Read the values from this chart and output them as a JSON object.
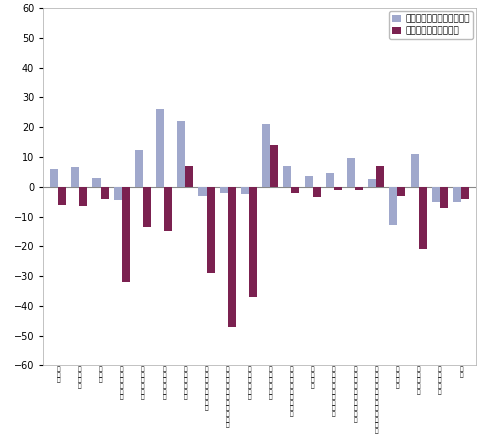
{
  "categories": [
    "鉱\n工\n業",
    "製\n造\n工\n業",
    "鉄\n鉰\n業",
    "非\n鉄\n金\n属\n工\n業",
    "金\n属\n製\n品\n工\n業",
    "一\n般\n機\n械\n工\n業",
    "電\n気\n機\n械\n工\n業",
    "情\n報\n通\n信\n機\n械\n工\n業",
    "電\n子\n部\n品\n・\nデ\nバ\nイ\nス\n工\n業",
    "輸\n送\n機\n械\n工\n業",
    "精\n密\n機\n械\n工\n業",
    "窯\n業\n・\n土\n石\n製\n品\n工\n業",
    "化\n学\n工\n業",
    "石\n油\n・\n石\n炭\n製\n品\n工\n業",
    "プ\nラ\nス\nチ\nッ\nク\n製\n品\n工\n業",
    "パ\nル\nプ\n・\n紙\n・\n紙\n加\n工\n品\n工\n業",
    "繊\n維\n工\n業",
    "食\n料\n品\n工\n業",
    "そ\nの\n他\n工\n業",
    "鉱\n業"
  ],
  "mom": [
    6.0,
    6.5,
    3.0,
    -4.5,
    12.5,
    26.0,
    22.0,
    -3.0,
    -2.0,
    -2.5,
    21.0,
    7.0,
    3.5,
    4.5,
    9.5,
    2.5,
    -13.0,
    11.0,
    -5.0,
    -5.0
  ],
  "yoy": [
    -6.0,
    -6.5,
    -4.0,
    -32.0,
    -13.5,
    -15.0,
    7.0,
    -29.0,
    -47.0,
    -37.0,
    14.0,
    -2.0,
    -3.5,
    -1.0,
    -1.0,
    7.0,
    -3.0,
    -21.0,
    -7.0,
    -4.0
  ],
  "mom_color": "#a0a8cc",
  "yoy_color": "#7b2150",
  "ylim": [
    -60,
    60
  ],
  "yticks": [
    -60,
    -50,
    -40,
    -30,
    -20,
    -10,
    0,
    10,
    20,
    30,
    40,
    50,
    60
  ],
  "legend_mom": "前月比（季節調整済指数）",
  "legend_yoy": "前年同月比（原指数）",
  "bar_width": 0.38,
  "fig_width": 4.8,
  "fig_height": 4.38,
  "dpi": 100
}
